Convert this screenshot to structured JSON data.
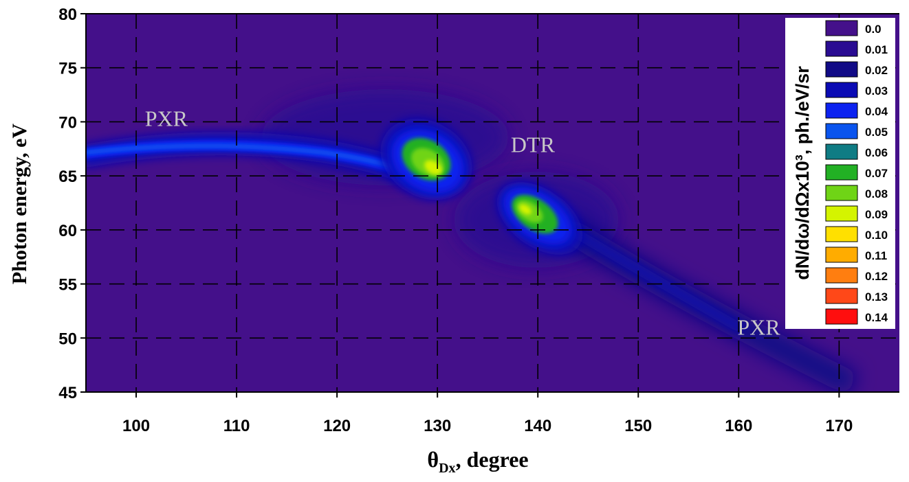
{
  "chart_data": {
    "type": "heatmap",
    "xlabel_main": "θ",
    "xlabel_sub": "Dx",
    "xlabel_rest": ", degree",
    "ylabel": "Photon energy, eV",
    "xlim": [
      95,
      176
    ],
    "ylim": [
      45,
      80
    ],
    "x_ticks": [
      100,
      110,
      120,
      130,
      140,
      150,
      160,
      170
    ],
    "y_ticks": [
      45,
      50,
      55,
      60,
      65,
      70,
      75,
      80
    ],
    "grid": true,
    "annotations": [
      {
        "text": "PXR",
        "x": 103.0,
        "y": 69.6
      },
      {
        "text": "DTR",
        "x": 139.5,
        "y": 67.2
      },
      {
        "text": "PXR",
        "x": 162.0,
        "y": 50.3
      }
    ],
    "colorbar_title": "dN/dω/dΩx10³, ph./eV/sr",
    "colorbar_placement": "top-right",
    "colorbar": [
      {
        "label": "0.0",
        "color": "#44108a"
      },
      {
        "label": "0.01",
        "color": "#2a0c92"
      },
      {
        "label": "0.02",
        "color": "#110a86"
      },
      {
        "label": "0.03",
        "color": "#0a0ab4"
      },
      {
        "label": "0.04",
        "color": "#0c22f0"
      },
      {
        "label": "0.05",
        "color": "#0a54ee"
      },
      {
        "label": "0.06",
        "color": "#0f7c84"
      },
      {
        "label": "0.07",
        "color": "#22b024"
      },
      {
        "label": "0.08",
        "color": "#6fd416"
      },
      {
        "label": "0.09",
        "color": "#d4f400"
      },
      {
        "label": "0.10",
        "color": "#ffe000"
      },
      {
        "label": "0.11",
        "color": "#ffac00"
      },
      {
        "label": "0.12",
        "color": "#ff7e10"
      },
      {
        "label": "0.13",
        "color": "#ff4818"
      },
      {
        "label": "0.14",
        "color": "#ff0e0e"
      }
    ],
    "features": [
      {
        "name": "PXR band",
        "x_range": [
          95,
          127
        ],
        "y_range": [
          66.5,
          68
        ],
        "peak_value": 0.05
      },
      {
        "name": "DTR peak 1",
        "x": 130,
        "y": 65.5,
        "peak_value": 0.09
      },
      {
        "name": "DTR peak 2",
        "x": 140,
        "y": 61,
        "peak_value": 0.085
      },
      {
        "name": "PXR tail",
        "x_range": [
          143,
          170
        ],
        "y_range": [
          44,
          59
        ],
        "peak_value": 0.02
      }
    ]
  }
}
